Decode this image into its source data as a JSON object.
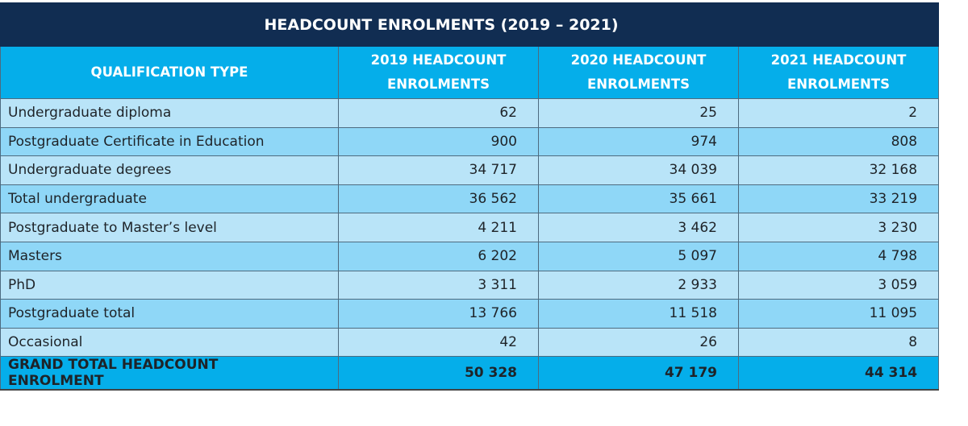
{
  "title": "HEADCOUNT ENROLMENTS (2019 – 2021)",
  "headers": [
    "QUALIFICATION TYPE",
    "2019 HEADCOUNT ENROLMENTS",
    "2020 HEADCOUNT ENROLMENTS",
    "2021 HEADCOUNT ENROLMENTS"
  ],
  "rows": [
    [
      "Undergraduate diploma",
      "62",
      "25",
      "2"
    ],
    [
      "Postgraduate Certificate in Education",
      "900",
      "974",
      "808"
    ],
    [
      "Undergraduate degrees",
      "34 717",
      "34 039",
      "32 168"
    ],
    [
      "Total undergraduate",
      "36 562",
      "35 661",
      "33 219"
    ],
    [
      "Postgraduate to Master’s level",
      "4 211",
      "3 462",
      "3 230"
    ],
    [
      "Masters",
      "6 202",
      "5 097",
      "4 798"
    ],
    [
      "PhD",
      "3 311",
      "2 933",
      "3 059"
    ],
    [
      "Postgraduate total",
      "13 766",
      "11 518",
      "11 095"
    ],
    [
      "Occasional",
      "42",
      "26",
      "8"
    ]
  ],
  "total": [
    "GRAND TOTAL HEADCOUNT ENROLMENT",
    "50 328",
    "47 179",
    "44 314"
  ]
}
